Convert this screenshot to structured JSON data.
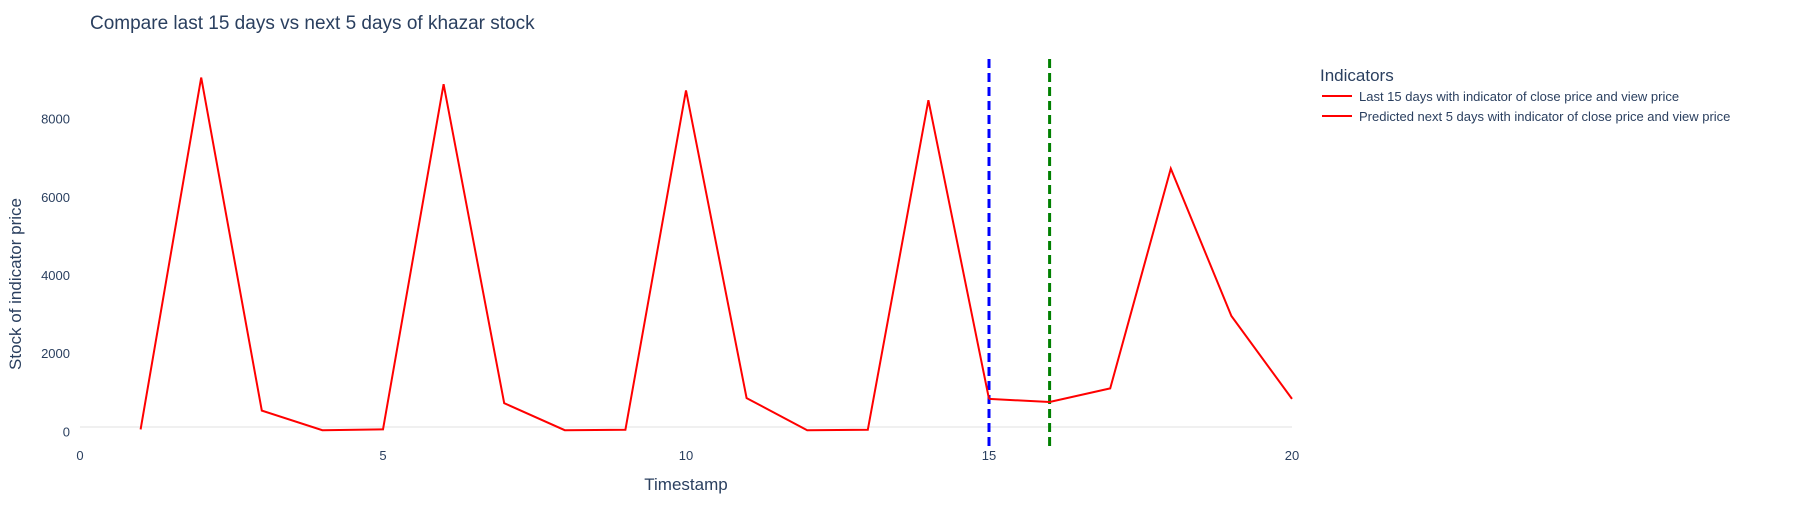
{
  "chart_data": {
    "type": "line",
    "title": "Compare last 15 days vs next 5 days of khazar stock",
    "xlabel": "Timestamp",
    "ylabel": "Stock of indicator price",
    "xlim": [
      0,
      20
    ],
    "ylim": [
      -400,
      9600
    ],
    "xticks": [
      0,
      5,
      10,
      15,
      20
    ],
    "yticks": [
      0,
      2000,
      4000,
      6000,
      8000
    ],
    "grid": false,
    "legend": {
      "title": "Indicators",
      "placement": "top-right outside"
    },
    "series": [
      {
        "name": "Last 15 days with indicator of close price and view price",
        "color": "#ff0000",
        "x": [
          1,
          2,
          3,
          4,
          5,
          6,
          7,
          8,
          9,
          10,
          11,
          12,
          13,
          14,
          15
        ],
        "y": [
          50,
          9050,
          530,
          30,
          50,
          8880,
          720,
          30,
          40,
          8720,
          850,
          30,
          40,
          8470,
          830
        ]
      },
      {
        "name": "Predicted next 5 days with indicator of close price and view price",
        "color": "#ff0000",
        "x": [
          15,
          16,
          17,
          18,
          19,
          20
        ],
        "y": [
          830,
          750,
          1100,
          6720,
          2950,
          830
        ]
      }
    ],
    "vlines": [
      {
        "x": 15,
        "color": "#0000ff",
        "dash": "dash"
      },
      {
        "x": 16,
        "color": "#008000",
        "dash": "dash"
      }
    ]
  }
}
